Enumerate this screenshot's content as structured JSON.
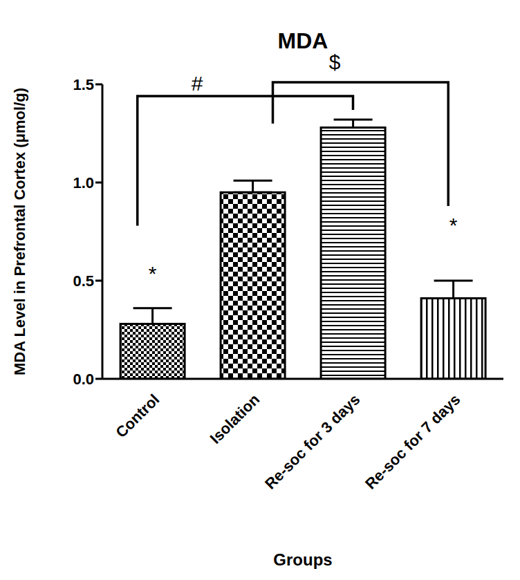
{
  "chart_data": {
    "type": "bar",
    "title": "MDA",
    "x_label": "Groups",
    "y_label": "MDA Level in Prefrontal Cortex (μmol/g)",
    "categories": [
      "Control",
      "Isolation",
      "Re-soc for 3 days",
      "Re-soc for 7 days"
    ],
    "values": [
      0.28,
      0.95,
      1.28,
      0.41
    ],
    "errors": [
      0.08,
      0.06,
      0.04,
      0.09
    ],
    "color": "#000000",
    "ylim": [
      0,
      1.5
    ],
    "yticks": [
      {
        "value": 0,
        "label": "0.0"
      },
      0.5,
      {
        "value": 1,
        "label": "1.0"
      },
      1.5
    ],
    "grid": false,
    "annotations": [
      "$",
      "#",
      "*",
      "*"
    ]
  }
}
